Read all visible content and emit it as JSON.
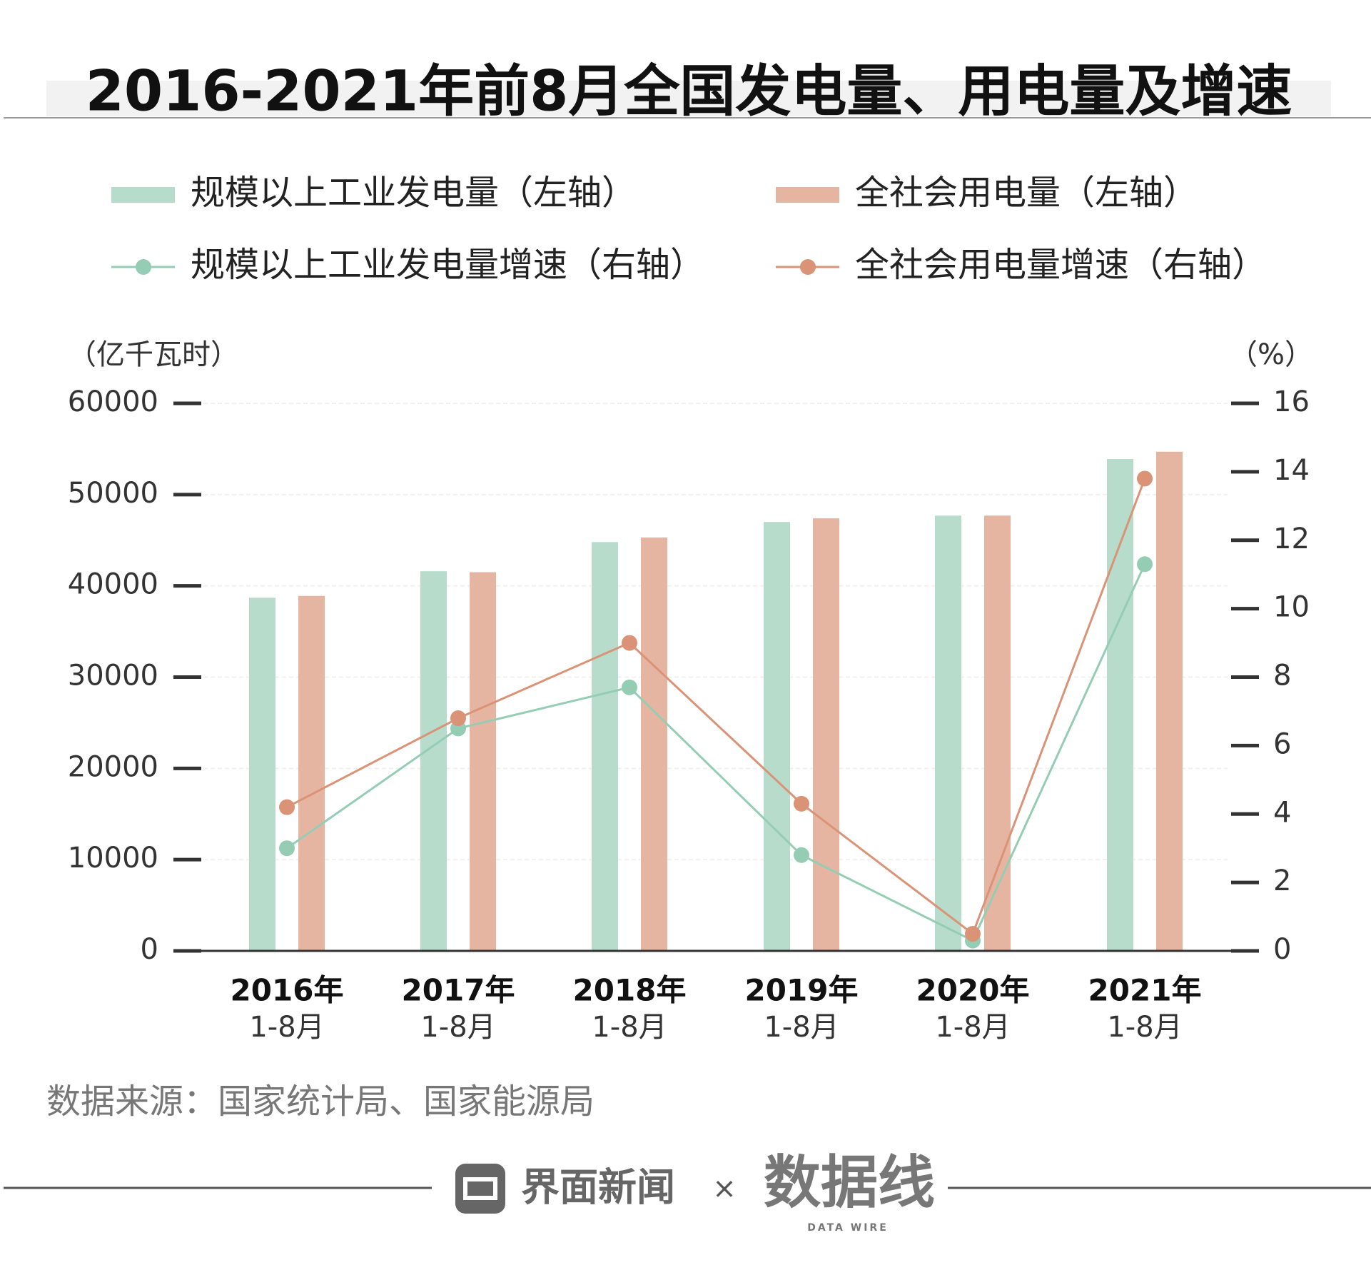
{
  "chart_data": {
    "type": "bar+line",
    "title": "2016-2021年前8月全国发电量、用电量及增速",
    "categories": [
      {
        "year": "2016年",
        "period": "1-8月"
      },
      {
        "year": "2017年",
        "period": "1-8月"
      },
      {
        "year": "2018年",
        "period": "1-8月"
      },
      {
        "year": "2019年",
        "period": "1-8月"
      },
      {
        "year": "2020年",
        "period": "1-8月"
      },
      {
        "year": "2021年",
        "period": "1-8月"
      }
    ],
    "left_axis": {
      "label": "（亿千瓦时）",
      "ylim": [
        0,
        60000
      ],
      "ticks": [
        "0",
        "10000",
        "20000",
        "30000",
        "40000",
        "50000",
        "60000"
      ]
    },
    "right_axis": {
      "label": "（%）",
      "ylim": [
        0,
        16
      ],
      "ticks": [
        "0",
        "2",
        "4",
        "6",
        "8",
        "10",
        "12",
        "14",
        "16"
      ]
    },
    "series": [
      {
        "name": "规模以上工业发电量（左轴）",
        "type": "bar",
        "axis": "left",
        "color": "#b7dccb",
        "values": [
          38700,
          41600,
          44800,
          47000,
          47700,
          53900
        ]
      },
      {
        "name": "全社会用电量（左轴）",
        "type": "bar",
        "axis": "left",
        "color": "#e6b5a1",
        "values": [
          38900,
          41500,
          45300,
          47400,
          47700,
          54700
        ]
      },
      {
        "name": "规模以上工业发电量增速（右轴）",
        "type": "line",
        "axis": "right",
        "color": "#95cdb4",
        "values": [
          3.0,
          6.5,
          7.7,
          2.8,
          0.3,
          11.3
        ]
      },
      {
        "name": "全社会用电量增速（右轴）",
        "type": "line",
        "axis": "right",
        "color": "#da9376",
        "values": [
          4.2,
          6.8,
          9.0,
          4.3,
          0.5,
          13.8
        ]
      }
    ],
    "legend_position": "top",
    "grid": true
  },
  "source": "数据来源：国家统计局、国家能源局",
  "footer": {
    "brand": "界面新闻",
    "times": "×",
    "partner": "数据线",
    "partner_sub": "DATA WIRE"
  }
}
